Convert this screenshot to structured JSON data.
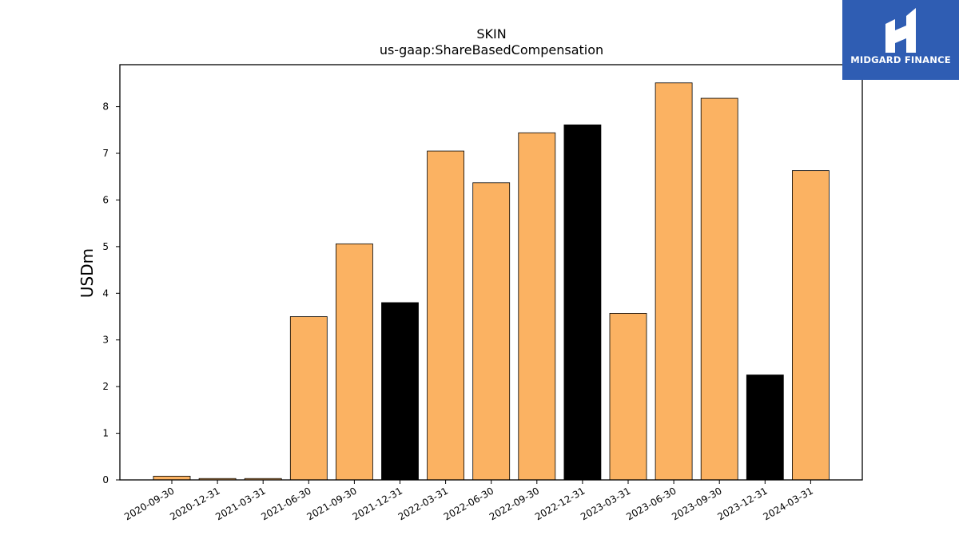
{
  "chart_data": {
    "type": "bar",
    "title": "SKIN",
    "subtitle": "us-gaap:ShareBasedCompensation",
    "xlabel": "",
    "ylabel": "USDm",
    "ylim": [
      0,
      8.9
    ],
    "yticks": [
      0,
      1,
      2,
      3,
      4,
      5,
      6,
      7,
      8
    ],
    "grid": false,
    "legend": "none",
    "categories": [
      "2020-09-30",
      "2020-12-31",
      "2021-03-31",
      "2021-06-30",
      "2021-09-30",
      "2021-12-31",
      "2022-03-31",
      "2022-06-30",
      "2022-09-30",
      "2022-12-31",
      "2023-03-31",
      "2023-06-30",
      "2023-09-30",
      "2023-12-31",
      "2024-03-31"
    ],
    "values": [
      0.08,
      0.03,
      0.03,
      3.5,
      5.06,
      3.8,
      7.05,
      6.37,
      7.44,
      7.61,
      3.57,
      8.51,
      8.18,
      2.25,
      6.63
    ],
    "bar_colors": [
      "#fbb262",
      "#fbb262",
      "#fbb262",
      "#fbb262",
      "#fbb262",
      "#000000",
      "#fbb262",
      "#fbb262",
      "#fbb262",
      "#000000",
      "#fbb262",
      "#fbb262",
      "#fbb262",
      "#000000",
      "#fbb262"
    ]
  },
  "logo": {
    "text": "MIDGARD FINANCE",
    "background": "#2f5db3"
  }
}
